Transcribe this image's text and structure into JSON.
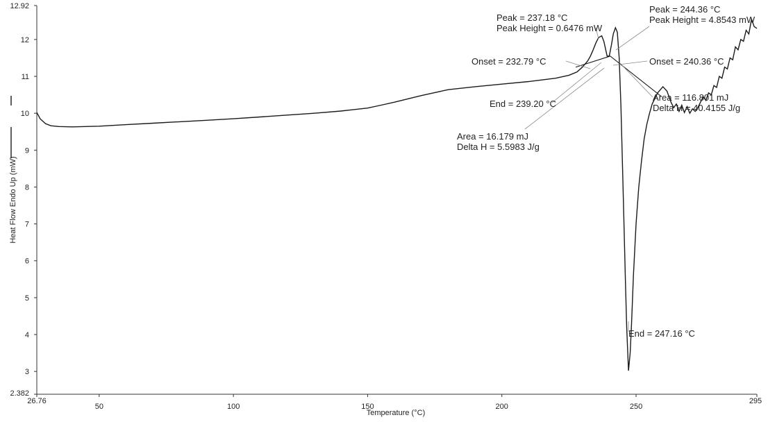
{
  "chart_data": {
    "type": "line",
    "title": "",
    "xlabel": "Temperature (°C)",
    "ylabel": "Heat Flow Endo Up (mW)",
    "xlim": [
      26.76,
      295
    ],
    "ylim": [
      2.382,
      12.92
    ],
    "grid": false,
    "x_ticks": [
      "26.76",
      "50",
      "100",
      "150",
      "200",
      "250",
      "295"
    ],
    "y_ticks": [
      "2.382",
      "3",
      "4",
      "5",
      "6",
      "7",
      "8",
      "9",
      "10",
      "11",
      "12",
      "12.92"
    ],
    "series": [
      {
        "x": [
          26.76,
          28,
          30,
          32,
          35,
          40,
          50,
          60,
          70,
          80,
          90,
          100,
          110,
          120,
          130,
          140,
          150,
          155,
          160,
          165,
          170,
          175,
          180,
          190,
          200,
          210,
          220,
          225,
          228,
          230,
          232,
          233,
          234,
          235,
          236,
          237.18,
          238,
          239.2,
          240,
          240.8,
          241.5,
          242.3,
          243,
          243.7,
          244.36,
          245,
          245.5,
          246,
          246.5,
          247.16,
          247.8,
          248.3,
          249,
          250,
          251,
          252,
          253,
          254,
          255,
          256,
          258,
          260,
          261.5,
          263,
          264,
          265,
          266,
          267,
          268,
          269,
          270,
          271,
          272,
          273,
          274,
          275,
          276,
          277,
          278,
          279,
          280,
          281,
          282,
          283,
          284,
          285,
          286,
          287,
          288,
          289,
          290,
          291,
          292,
          293,
          294,
          295
        ],
        "y": [
          10.02,
          9.85,
          9.72,
          9.66,
          9.64,
          9.63,
          9.65,
          9.69,
          9.73,
          9.77,
          9.81,
          9.85,
          9.9,
          9.95,
          10.0,
          10.06,
          10.14,
          10.22,
          10.3,
          10.39,
          10.48,
          10.56,
          10.64,
          10.72,
          10.79,
          10.86,
          10.95,
          11.03,
          11.12,
          11.25,
          11.42,
          11.55,
          11.72,
          11.9,
          12.05,
          12.1,
          11.95,
          11.55,
          11.55,
          11.85,
          12.15,
          12.32,
          12.2,
          11.5,
          10.2,
          8.4,
          7.0,
          5.5,
          4.2,
          3.02,
          3.5,
          4.3,
          5.6,
          7.0,
          8.0,
          8.7,
          9.3,
          9.7,
          10.0,
          10.25,
          10.55,
          10.72,
          10.6,
          10.3,
          10.15,
          10.25,
          10.05,
          10.22,
          10.02,
          10.18,
          10.0,
          10.12,
          10.05,
          10.15,
          10.3,
          10.45,
          10.35,
          10.55,
          10.5,
          10.75,
          10.7,
          11.0,
          10.95,
          11.25,
          11.2,
          11.5,
          11.45,
          11.8,
          11.72,
          12.0,
          11.95,
          12.25,
          12.15,
          12.55,
          12.35,
          12.3
        ]
      }
    ],
    "baselines": [
      {
        "x": [
          227.5,
          240.4
        ],
        "y": [
          11.25,
          11.55
        ]
      },
      {
        "x": [
          240.36,
          259.5
        ],
        "y": [
          11.55,
          10.45
        ]
      }
    ],
    "annotations": [
      {
        "text": "Peak = 237.18 °C",
        "x": 237.18
      },
      {
        "text": "Peak Height = 0.6476 mW",
        "x": 237.18
      },
      {
        "text": "Onset = 232.79 °C",
        "x": 232.79
      },
      {
        "text": "End = 239.20 °C",
        "x": 239.2
      },
      {
        "text": "Area = 16.179 mJ"
      },
      {
        "text": "Delta H = 5.5983 J/g"
      },
      {
        "text": "Peak = 244.36 °C",
        "x": 244.36
      },
      {
        "text": "Peak Height = 4.8543 mW",
        "x": 244.36
      },
      {
        "text": "Onset = 240.36 °C",
        "x": 240.36
      },
      {
        "text": "Area = 116.801 mJ"
      },
      {
        "text": "Delta H = 40.4155 J/g"
      },
      {
        "text": "End = 247.16 °C",
        "x": 247.16
      }
    ],
    "colors": {
      "line": "#1a1a1a",
      "axis": "#333333",
      "leader": "#888888"
    }
  }
}
